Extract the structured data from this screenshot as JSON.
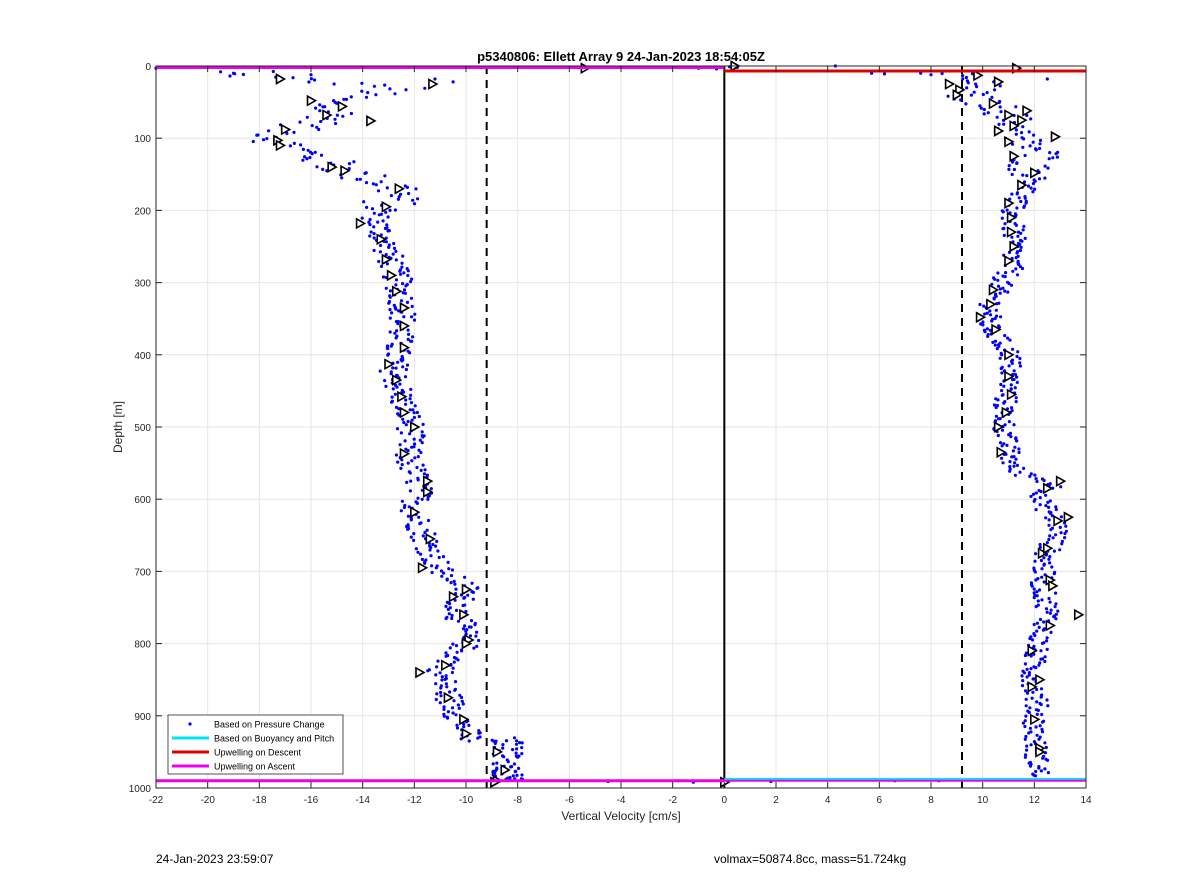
{
  "chart_data": {
    "type": "scatter",
    "title": "p5340806: Ellett Array 9 24-Jan-2023 18:54:05Z",
    "xlabel": "Vertical Velocity [cm/s]",
    "ylabel": "Depth [m]",
    "xlim": [
      -22,
      14
    ],
    "ylim": [
      0,
      1000
    ],
    "y_reversed": true,
    "grid": true,
    "x_ticks": [
      -22,
      -20,
      -18,
      -16,
      -14,
      -12,
      -10,
      -8,
      -6,
      -4,
      -2,
      0,
      2,
      4,
      6,
      8,
      10,
      12,
      14
    ],
    "y_ticks": [
      0,
      100,
      200,
      300,
      400,
      500,
      600,
      700,
      800,
      900,
      1000
    ],
    "legend_position": "bottom-left",
    "series": [
      {
        "name": "Based on Pressure Change",
        "marker": "dot",
        "color": "#0000ff"
      },
      {
        "name": "Based on Buoyancy and Pitch",
        "marker": "line",
        "color": "#00e5ee"
      },
      {
        "name": "Upwelling on Descent",
        "marker": "line",
        "color": "#dd0000"
      },
      {
        "name": "Upwelling on Ascent",
        "marker": "line",
        "color": "#ee00ee"
      }
    ],
    "ascent_profile": {
      "depth": [
        0,
        10,
        20,
        30,
        50,
        70,
        90,
        100,
        110,
        130,
        150,
        170,
        190,
        210,
        230,
        260,
        300,
        340,
        380,
        420,
        460,
        500,
        540,
        580,
        620,
        660,
        700,
        720,
        740,
        760,
        780,
        800,
        820,
        840,
        860,
        880,
        900,
        920,
        935
      ],
      "velocity": [
        -11,
        -19.5,
        -16,
        -12.5,
        -15.5,
        -15,
        -17,
        -17.3,
        -17,
        -15.5,
        -14.3,
        -12.5,
        -13,
        -13.5,
        -13.3,
        -13,
        -12.6,
        -12.4,
        -12.6,
        -12.8,
        -12.5,
        -12.1,
        -12.3,
        -11.8,
        -12,
        -11.5,
        -11,
        -10,
        -10.2,
        -10.3,
        -10.1,
        -10,
        -10.5,
        -11,
        -10.8,
        -10.6,
        -10.3,
        -10,
        -9.8
      ]
    },
    "descent_profile": {
      "depth": [
        10,
        20,
        30,
        40,
        60,
        80,
        100,
        120,
        140,
        160,
        180,
        200,
        240,
        280,
        320,
        360,
        400,
        440,
        480,
        520,
        560,
        580,
        600,
        620,
        640,
        680,
        720,
        760,
        800,
        840,
        880,
        920,
        960,
        985
      ],
      "velocity": [
        8.8,
        9.5,
        10,
        9.2,
        10.8,
        11.2,
        11.3,
        12.3,
        11.8,
        12.1,
        11.4,
        11.1,
        11.2,
        11.1,
        10.4,
        10.2,
        11.1,
        11.0,
        10.8,
        10.9,
        11.2,
        12.8,
        12.2,
        12.6,
        13.0,
        12.4,
        12.3,
        12.6,
        12.1,
        11.9,
        12.1,
        12.0,
        12.1,
        12.2
      ]
    },
    "deep_cluster": {
      "depth_range": [
        930,
        990
      ],
      "velocity_range": [
        -9,
        -7.8
      ]
    },
    "model_markers_ascent": [
      {
        "v": -17.2,
        "d": 18
      },
      {
        "v": -11.3,
        "d": 25
      },
      {
        "v": -16,
        "d": 48
      },
      {
        "v": -15.4,
        "d": 68
      },
      {
        "v": -14.8,
        "d": 56
      },
      {
        "v": -13.7,
        "d": 76
      },
      {
        "v": -17.0,
        "d": 88
      },
      {
        "v": -17.3,
        "d": 103
      },
      {
        "v": -17.2,
        "d": 110
      },
      {
        "v": -15.2,
        "d": 140
      },
      {
        "v": -14.7,
        "d": 145
      },
      {
        "v": -12.6,
        "d": 170
      },
      {
        "v": -13.1,
        "d": 195
      },
      {
        "v": -14.1,
        "d": 218
      },
      {
        "v": -13.3,
        "d": 240
      },
      {
        "v": -13.1,
        "d": 268
      },
      {
        "v": -12.9,
        "d": 290
      },
      {
        "v": -12.7,
        "d": 312
      },
      {
        "v": -12.4,
        "d": 335
      },
      {
        "v": -12.4,
        "d": 360
      },
      {
        "v": -12.4,
        "d": 390
      },
      {
        "v": -13.0,
        "d": 413
      },
      {
        "v": -12.7,
        "d": 435
      },
      {
        "v": -12.5,
        "d": 458
      },
      {
        "v": -12.4,
        "d": 480
      },
      {
        "v": -12.0,
        "d": 500
      },
      {
        "v": -12.4,
        "d": 537
      },
      {
        "v": -11.5,
        "d": 575
      },
      {
        "v": -11.5,
        "d": 590
      },
      {
        "v": -12.0,
        "d": 618
      },
      {
        "v": -11.4,
        "d": 655
      },
      {
        "v": -11.7,
        "d": 695
      },
      {
        "v": -10.0,
        "d": 725
      },
      {
        "v": -10.5,
        "d": 735
      },
      {
        "v": -10.1,
        "d": 760
      },
      {
        "v": -9.9,
        "d": 795
      },
      {
        "v": -10.0,
        "d": 800
      },
      {
        "v": -10.8,
        "d": 830
      },
      {
        "v": -11.8,
        "d": 840
      },
      {
        "v": -10.7,
        "d": 875
      },
      {
        "v": -10.1,
        "d": 905
      },
      {
        "v": -10.0,
        "d": 925
      },
      {
        "v": -8.8,
        "d": 950
      },
      {
        "v": -8.5,
        "d": 975
      },
      {
        "v": -5.4,
        "d": 3
      },
      {
        "v": -8.8,
        "d": 990
      }
    ],
    "model_markers_descent": [
      {
        "v": 11.3,
        "d": 3
      },
      {
        "v": 0.4,
        "d": 0
      },
      {
        "v": 9.8,
        "d": 13
      },
      {
        "v": 10.6,
        "d": 22
      },
      {
        "v": 8.7,
        "d": 25
      },
      {
        "v": 9.1,
        "d": 33
      },
      {
        "v": 9.0,
        "d": 40
      },
      {
        "v": 10.4,
        "d": 52
      },
      {
        "v": 11.7,
        "d": 62
      },
      {
        "v": 11.0,
        "d": 68
      },
      {
        "v": 11.5,
        "d": 75
      },
      {
        "v": 11.2,
        "d": 83
      },
      {
        "v": 10.6,
        "d": 90
      },
      {
        "v": 12.8,
        "d": 98
      },
      {
        "v": 11.0,
        "d": 105
      },
      {
        "v": 11.2,
        "d": 125
      },
      {
        "v": 12.0,
        "d": 148
      },
      {
        "v": 11.5,
        "d": 165
      },
      {
        "v": 11.0,
        "d": 190
      },
      {
        "v": 11.1,
        "d": 210
      },
      {
        "v": 11.1,
        "d": 230
      },
      {
        "v": 11.2,
        "d": 250
      },
      {
        "v": 11.0,
        "d": 270
      },
      {
        "v": 10.4,
        "d": 310
      },
      {
        "v": 10.3,
        "d": 330
      },
      {
        "v": 9.9,
        "d": 348
      },
      {
        "v": 10.5,
        "d": 365
      },
      {
        "v": 11.0,
        "d": 400
      },
      {
        "v": 11.0,
        "d": 430
      },
      {
        "v": 11.1,
        "d": 455
      },
      {
        "v": 10.9,
        "d": 480
      },
      {
        "v": 10.6,
        "d": 500
      },
      {
        "v": 10.7,
        "d": 535
      },
      {
        "v": 13.0,
        "d": 575
      },
      {
        "v": 12.5,
        "d": 585
      },
      {
        "v": 13.3,
        "d": 625
      },
      {
        "v": 12.9,
        "d": 630
      },
      {
        "v": 12.3,
        "d": 675
      },
      {
        "v": 12.5,
        "d": 668
      },
      {
        "v": 12.6,
        "d": 712
      },
      {
        "v": 12.7,
        "d": 720
      },
      {
        "v": 13.7,
        "d": 760
      },
      {
        "v": 12.6,
        "d": 775
      },
      {
        "v": 11.9,
        "d": 810
      },
      {
        "v": 12.2,
        "d": 850
      },
      {
        "v": 11.9,
        "d": 860
      },
      {
        "v": 12.0,
        "d": 905
      },
      {
        "v": 12.2,
        "d": 945
      },
      {
        "v": 12.2,
        "d": 950
      },
      {
        "v": 0,
        "d": 992
      },
      {
        "v": -8.9,
        "d": 992
      }
    ],
    "reference_lines": {
      "dashed_left_x": -9.2,
      "dashed_right_x": 9.2,
      "zero_x": 0,
      "descent_upwelling_depth": 7,
      "ascent_upwelling_depth": 2,
      "bottom_line_depth": 990
    }
  },
  "footer": {
    "left": "24-Jan-2023 23:59:07",
    "right": "volmax=50874.8cc, mass=51.724kg"
  }
}
